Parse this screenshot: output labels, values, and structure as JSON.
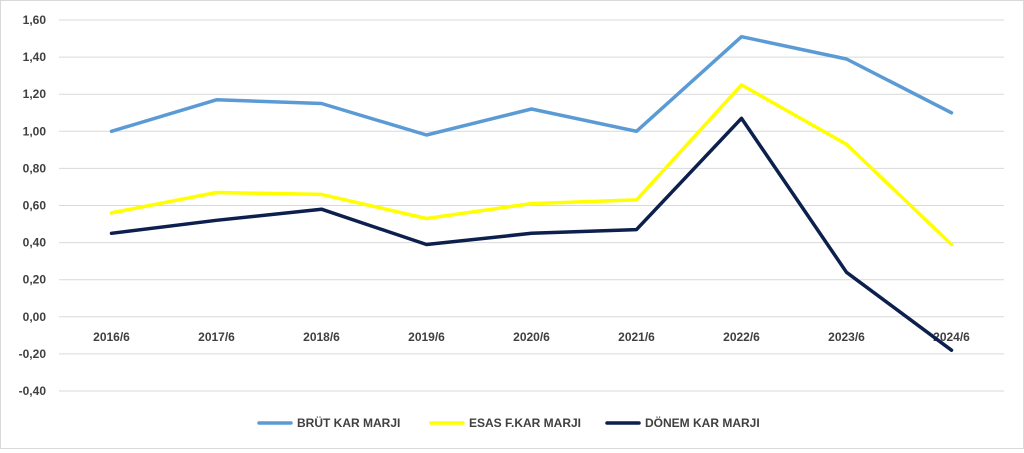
{
  "chart_data": {
    "type": "line",
    "title": "",
    "xlabel": "",
    "ylabel": "",
    "categories": [
      "2016/6",
      "2017/6",
      "2018/6",
      "2019/6",
      "2020/6",
      "2021/6",
      "2022/6",
      "2023/6",
      "2024/6"
    ],
    "ylim": [
      -0.4,
      1.6
    ],
    "yticks": [
      "-0,40",
      "-0,20",
      "0,00",
      "0,20",
      "0,40",
      "0,60",
      "0,80",
      "1,00",
      "1,20",
      "1,40",
      "1,60"
    ],
    "grid": true,
    "legend_position": "bottom",
    "series": [
      {
        "name": "BRÜT KAR MARJI",
        "color": "#5b9bd5",
        "values": [
          1.0,
          1.17,
          1.15,
          0.98,
          1.12,
          1.0,
          1.51,
          1.39,
          1.1
        ]
      },
      {
        "name": "ESAS F.KAR MARJI",
        "color": "#ffff00",
        "values": [
          0.56,
          0.67,
          0.66,
          0.53,
          0.61,
          0.63,
          1.25,
          0.93,
          0.39
        ]
      },
      {
        "name": "DÖNEM KAR MARJI",
        "color": "#0d1f4d",
        "values": [
          0.45,
          0.52,
          0.58,
          0.39,
          0.45,
          0.47,
          1.07,
          0.24,
          -0.18
        ]
      }
    ]
  }
}
